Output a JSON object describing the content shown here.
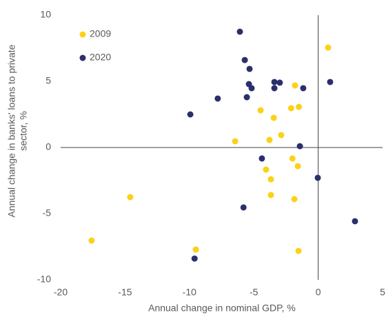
{
  "chart_data": {
    "type": "scatter",
    "xlabel": "Annual change in nominal GDP, %",
    "ylabel": [
      "Annual change in banks' loans to private",
      "sector, %"
    ],
    "xlim": [
      -20,
      5
    ],
    "xticks": [
      -20,
      -15,
      -10,
      -5,
      0,
      5
    ],
    "ylim": [
      -10,
      10
    ],
    "yticks": [
      -10,
      -5,
      0,
      5,
      10
    ],
    "legend": "top-left",
    "series": [
      {
        "name": "2009",
        "color": "#fcd116",
        "x": [
          0.77,
          -1.8,
          -1.5,
          -4.47,
          -2.1,
          -3.45,
          -2.87,
          -6.45,
          -3.78,
          -2.0,
          -1.58,
          -4.05,
          -3.67,
          -3.67,
          -1.85,
          -14.6,
          -17.6,
          -9.5,
          -1.53
        ],
        "values": [
          7.55,
          4.69,
          3.07,
          2.81,
          2.97,
          2.24,
          0.94,
          0.47,
          0.57,
          -0.83,
          -1.41,
          -1.67,
          -2.4,
          -3.59,
          -3.9,
          -3.75,
          -7.03,
          -7.71,
          -7.81
        ]
      },
      {
        "name": "2020",
        "color": "#2b2f6b",
        "x": [
          -6.08,
          -5.7,
          -5.33,
          -3.4,
          -2.98,
          -5.38,
          -5.17,
          -3.4,
          -1.16,
          0.93,
          -7.8,
          -5.54,
          -9.93,
          -1.42,
          -4.37,
          -0.03,
          -5.8,
          2.86,
          -9.6
        ],
        "values": [
          8.75,
          6.61,
          5.94,
          4.95,
          4.9,
          4.79,
          4.48,
          4.48,
          4.48,
          4.95,
          3.7,
          3.8,
          2.5,
          0.1,
          -0.83,
          -2.29,
          -4.53,
          -5.57,
          -8.39
        ]
      }
    ]
  }
}
